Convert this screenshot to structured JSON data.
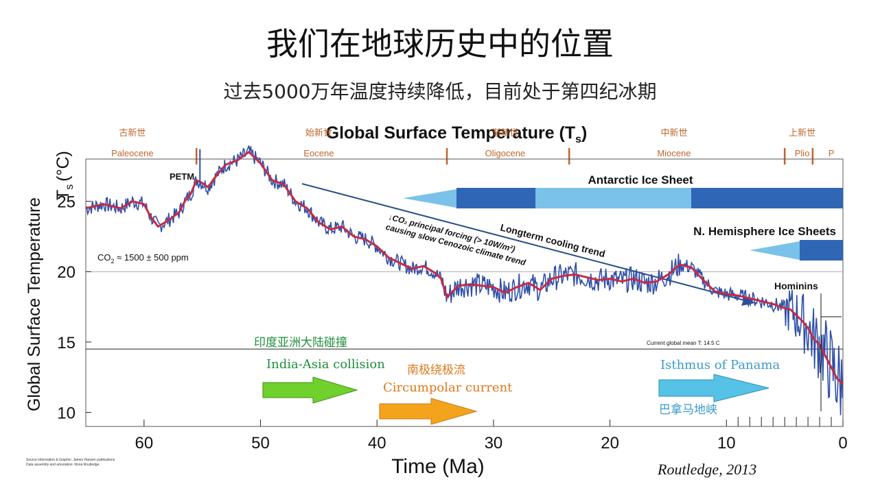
{
  "slide": {
    "title": "我们在地球历史中的位置",
    "subtitle": "过去5000万年温度持续降低，目前处于第四纪冰期",
    "source": "Routledge, 2013",
    "credit_line1": "Source information & Graphic: James Hansen publications",
    "credit_line2": "Data assembly and annotation: Rona Routledge"
  },
  "chart_data": {
    "type": "line",
    "title_main": "Global Surface Temperature (T",
    "title_sub": "s",
    "title_end": ")",
    "ylabel": "Global Surface Temperature",
    "ylabel_unit_symbol": "T",
    "ylabel_unit_sub": "s",
    "ylabel_unit": "(°C)",
    "xlabel": "Time (Ma)",
    "xlim": [
      65,
      0
    ],
    "ylim": [
      9,
      28
    ],
    "xticks": [
      60,
      50,
      40,
      30,
      20,
      10,
      0
    ],
    "yticks": [
      10,
      15,
      20,
      25
    ],
    "reference_lines": [
      {
        "y": 20,
        "style": "gray"
      },
      {
        "y": 14.5,
        "label": "Current global mean T: 14.5 C",
        "style": "black"
      }
    ],
    "epochs": [
      {
        "en": "Paleocene",
        "zh": "古新世",
        "x": 61
      },
      {
        "en": "Eocene",
        "zh": "始新世",
        "x": 45
      },
      {
        "en": "Oligocene",
        "zh": "渐新世",
        "x": 29
      },
      {
        "en": "Miocene",
        "zh": "中新世",
        "x": 14.5
      },
      {
        "en": "Plio",
        "zh": "上新世",
        "x": 3.5
      },
      {
        "en": "P",
        "zh": "",
        "x": 1
      }
    ],
    "epoch_boundaries": [
      55.5,
      34,
      23.5,
      5,
      2.6
    ],
    "series": [
      {
        "x": [
          65,
          63.5,
          62,
          61,
          60,
          59.5,
          58.8,
          58,
          57,
          56.5,
          56,
          55.5,
          55,
          54.5,
          54,
          53,
          52,
          51,
          50,
          49,
          48,
          47,
          46,
          45,
          44,
          43,
          42,
          41,
          40,
          39,
          38,
          37,
          36,
          35,
          34.5,
          34,
          33.5,
          33,
          32,
          31,
          30,
          29,
          28,
          27,
          26,
          25,
          24,
          23,
          22,
          21,
          20,
          19,
          18,
          17,
          16,
          15,
          14,
          13,
          12,
          11,
          10,
          9,
          8,
          7,
          6,
          5,
          4.5,
          4,
          3.5,
          3,
          2.5,
          2,
          1.5,
          1,
          0.5,
          0
        ],
        "y": [
          24.5,
          24.8,
          24.5,
          25,
          24.8,
          24,
          23.2,
          23.6,
          24.2,
          25,
          25.5,
          26.5,
          26.3,
          26,
          26.6,
          27.6,
          27.9,
          28.5,
          27.7,
          26.5,
          26.2,
          25,
          24.5,
          23.5,
          23,
          23.2,
          22.5,
          22.3,
          21.8,
          21,
          20.6,
          20.2,
          20.4,
          19.9,
          19.5,
          18.2,
          18.6,
          19,
          19.1,
          19,
          18.9,
          18.5,
          18.9,
          19.2,
          18.7,
          19.5,
          19.7,
          19.8,
          19.6,
          19.4,
          19.5,
          19.3,
          19.5,
          19.2,
          19.3,
          19.8,
          20.5,
          20.3,
          19.4,
          18.6,
          18.4,
          18.3,
          18.1,
          17.9,
          17.7,
          17.4,
          17.3,
          16.9,
          16.5,
          16,
          15.2,
          14.8,
          14,
          13.2,
          12.4,
          12
        ]
      }
    ],
    "annotations": {
      "petm": "PETM",
      "co2_prefix": "CO",
      "co2_sub": "2",
      "co2_suffix": " ≈ 1500 ± 500 ppm",
      "co2_forcing_line1": "↓CO₂ principal forcing (> 10W/m²)",
      "co2_forcing_line2": "causing slow Cenozoic climate trend",
      "trend": "Longterm cooling trend",
      "antarctic": "Antarctic Ice Sheet",
      "nh_ice": "N. Hemisphere Ice Sheets",
      "hominins": "Hominins",
      "india_zh": "印度亚洲大陆碰撞",
      "india_en": "India-Asia collision",
      "circ_zh": "南极绕极流",
      "circ_en": "Circumpolar current",
      "panama_en": "Isthmus of Panama",
      "panama_zh": "巴拿马地峡"
    },
    "colors": {
      "raw": "#2e4fa8",
      "smooth": "#c62a45",
      "ice_dark": "#2f66b5",
      "ice_light": "#7ac2ea",
      "trend": "#2a4f86",
      "epoch": "#c0642a",
      "india": "#70d02c",
      "circumpolar": "#f4a31c",
      "panama": "#55c2e6"
    }
  }
}
